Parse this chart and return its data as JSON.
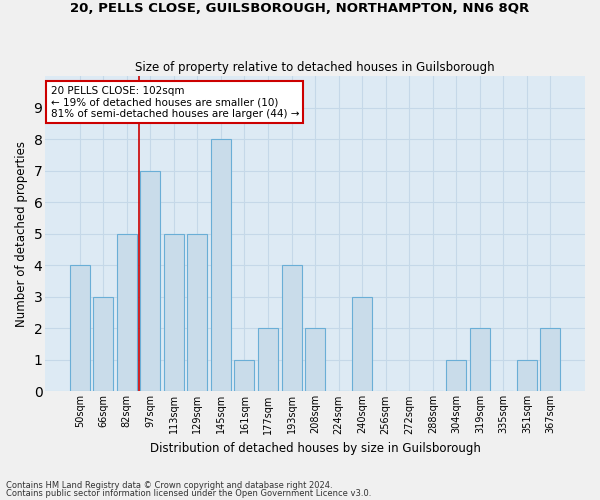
{
  "title1": "20, PELLS CLOSE, GUILSBOROUGH, NORTHAMPTON, NN6 8QR",
  "title2": "Size of property relative to detached houses in Guilsborough",
  "xlabel": "Distribution of detached houses by size in Guilsborough",
  "ylabel": "Number of detached properties",
  "categories": [
    "50sqm",
    "66sqm",
    "82sqm",
    "97sqm",
    "113sqm",
    "129sqm",
    "145sqm",
    "161sqm",
    "177sqm",
    "193sqm",
    "208sqm",
    "224sqm",
    "240sqm",
    "256sqm",
    "272sqm",
    "288sqm",
    "304sqm",
    "319sqm",
    "335sqm",
    "351sqm",
    "367sqm"
  ],
  "values": [
    4,
    3,
    5,
    7,
    5,
    5,
    8,
    1,
    2,
    4,
    2,
    0,
    3,
    0,
    0,
    0,
    1,
    2,
    0,
    1,
    2
  ],
  "bar_color": "#c9dcea",
  "bar_edge_color": "#6aaed6",
  "vline_x": 2.5,
  "ylim": [
    0,
    10
  ],
  "yticks": [
    0,
    1,
    2,
    3,
    4,
    5,
    6,
    7,
    8,
    9
  ],
  "annotation_text": "20 PELLS CLOSE: 102sqm\n← 19% of detached houses are smaller (10)\n81% of semi-detached houses are larger (44) →",
  "annotation_box_color": "#ffffff",
  "annotation_box_edge": "#cc0000",
  "footnote1": "Contains HM Land Registry data © Crown copyright and database right 2024.",
  "footnote2": "Contains public sector information licensed under the Open Government Licence v3.0.",
  "grid_color": "#c5d8e8",
  "vline_color": "#cc0000",
  "bg_color": "#ddeaf4",
  "fig_bg_color": "#f0f0f0"
}
